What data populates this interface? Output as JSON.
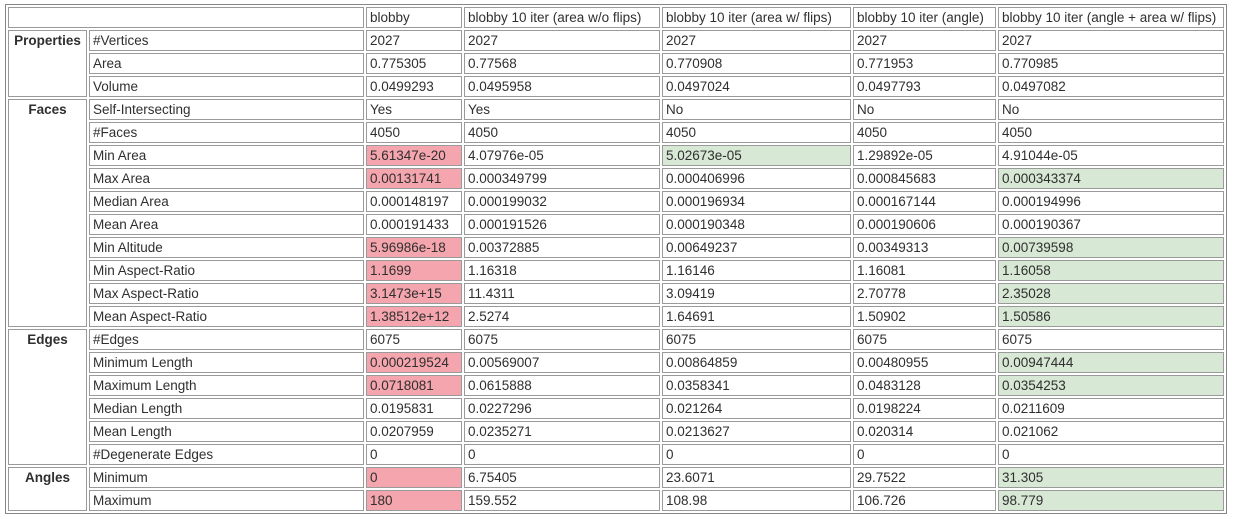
{
  "table": {
    "corner_label": "",
    "columns": [
      "blobby",
      "blobby 10 iter (area w/o flips)",
      "blobby 10 iter (area w/ flips)",
      "blobby 10 iter (angle)",
      "blobby 10 iter (angle + area w/ flips)"
    ],
    "colors": {
      "worst": "#f4a5ad",
      "best": "#d7e8d4"
    },
    "groups": [
      {
        "label": "Properties",
        "rows": [
          {
            "label": "#Vertices",
            "values": [
              "2027",
              "2027",
              "2027",
              "2027",
              "2027"
            ],
            "marks": [
              null,
              null,
              null,
              null,
              null
            ]
          },
          {
            "label": "Area",
            "values": [
              "0.775305",
              "0.77568",
              "0.770908",
              "0.771953",
              "0.770985"
            ],
            "marks": [
              null,
              null,
              null,
              null,
              null
            ]
          },
          {
            "label": "Volume",
            "values": [
              "0.0499293",
              "0.0495958",
              "0.0497024",
              "0.0497793",
              "0.0497082"
            ],
            "marks": [
              null,
              null,
              null,
              null,
              null
            ]
          }
        ]
      },
      {
        "label": "Faces",
        "rows": [
          {
            "label": "Self-Intersecting",
            "values": [
              "Yes",
              "Yes",
              "No",
              "No",
              "No"
            ],
            "marks": [
              null,
              null,
              null,
              null,
              null
            ]
          },
          {
            "label": "#Faces",
            "values": [
              "4050",
              "4050",
              "4050",
              "4050",
              "4050"
            ],
            "marks": [
              null,
              null,
              null,
              null,
              null
            ]
          },
          {
            "label": "Min Area",
            "values": [
              "5.61347e-20",
              "4.07976e-05",
              "5.02673e-05",
              "1.29892e-05",
              "4.91044e-05"
            ],
            "marks": [
              "worst",
              null,
              "best",
              null,
              null
            ]
          },
          {
            "label": "Max Area",
            "values": [
              "0.00131741",
              "0.000349799",
              "0.000406996",
              "0.000845683",
              "0.000343374"
            ],
            "marks": [
              "worst",
              null,
              null,
              null,
              "best"
            ]
          },
          {
            "label": "Median Area",
            "values": [
              "0.000148197",
              "0.000199032",
              "0.000196934",
              "0.000167144",
              "0.000194996"
            ],
            "marks": [
              null,
              null,
              null,
              null,
              null
            ]
          },
          {
            "label": "Mean Area",
            "values": [
              "0.000191433",
              "0.000191526",
              "0.000190348",
              "0.000190606",
              "0.000190367"
            ],
            "marks": [
              null,
              null,
              null,
              null,
              null
            ]
          },
          {
            "label": "Min Altitude",
            "values": [
              "5.96986e-18",
              "0.00372885",
              "0.00649237",
              "0.00349313",
              "0.00739598"
            ],
            "marks": [
              "worst",
              null,
              null,
              null,
              "best"
            ]
          },
          {
            "label": "Min Aspect-Ratio",
            "values": [
              "1.1699",
              "1.16318",
              "1.16146",
              "1.16081",
              "1.16058"
            ],
            "marks": [
              "worst",
              null,
              null,
              null,
              "best"
            ]
          },
          {
            "label": "Max Aspect-Ratio",
            "values": [
              "3.1473e+15",
              "11.4311",
              "3.09419",
              "2.70778",
              "2.35028"
            ],
            "marks": [
              "worst",
              null,
              null,
              null,
              "best"
            ]
          },
          {
            "label": "Mean Aspect-Ratio",
            "values": [
              "1.38512e+12",
              "2.5274",
              "1.64691",
              "1.50902",
              "1.50586"
            ],
            "marks": [
              "worst",
              null,
              null,
              null,
              "best"
            ]
          }
        ]
      },
      {
        "label": "Edges",
        "rows": [
          {
            "label": "#Edges",
            "values": [
              "6075",
              "6075",
              "6075",
              "6075",
              "6075"
            ],
            "marks": [
              null,
              null,
              null,
              null,
              null
            ]
          },
          {
            "label": "Minimum Length",
            "values": [
              "0.000219524",
              "0.00569007",
              "0.00864859",
              "0.00480955",
              "0.00947444"
            ],
            "marks": [
              "worst",
              null,
              null,
              null,
              "best"
            ]
          },
          {
            "label": "Maximum Length",
            "values": [
              "0.0718081",
              "0.0615888",
              "0.0358341",
              "0.0483128",
              "0.0354253"
            ],
            "marks": [
              "worst",
              null,
              null,
              null,
              "best"
            ]
          },
          {
            "label": "Median Length",
            "values": [
              "0.0195831",
              "0.0227296",
              "0.021264",
              "0.0198224",
              "0.0211609"
            ],
            "marks": [
              null,
              null,
              null,
              null,
              null
            ]
          },
          {
            "label": "Mean Length",
            "values": [
              "0.0207959",
              "0.0235271",
              "0.0213627",
              "0.020314",
              "0.021062"
            ],
            "marks": [
              null,
              null,
              null,
              null,
              null
            ]
          },
          {
            "label": "#Degenerate Edges",
            "values": [
              "0",
              "0",
              "0",
              "0",
              "0"
            ],
            "marks": [
              null,
              null,
              null,
              null,
              null
            ]
          }
        ]
      },
      {
        "label": "Angles",
        "rows": [
          {
            "label": "Minimum",
            "values": [
              "0",
              "6.75405",
              "23.6071",
              "29.7522",
              "31.305"
            ],
            "marks": [
              "worst",
              null,
              null,
              null,
              "best"
            ]
          },
          {
            "label": "Maximum",
            "values": [
              "180",
              "159.552",
              "108.98",
              "106.726",
              "98.779"
            ],
            "marks": [
              "worst",
              null,
              null,
              null,
              "best"
            ]
          }
        ]
      }
    ]
  }
}
